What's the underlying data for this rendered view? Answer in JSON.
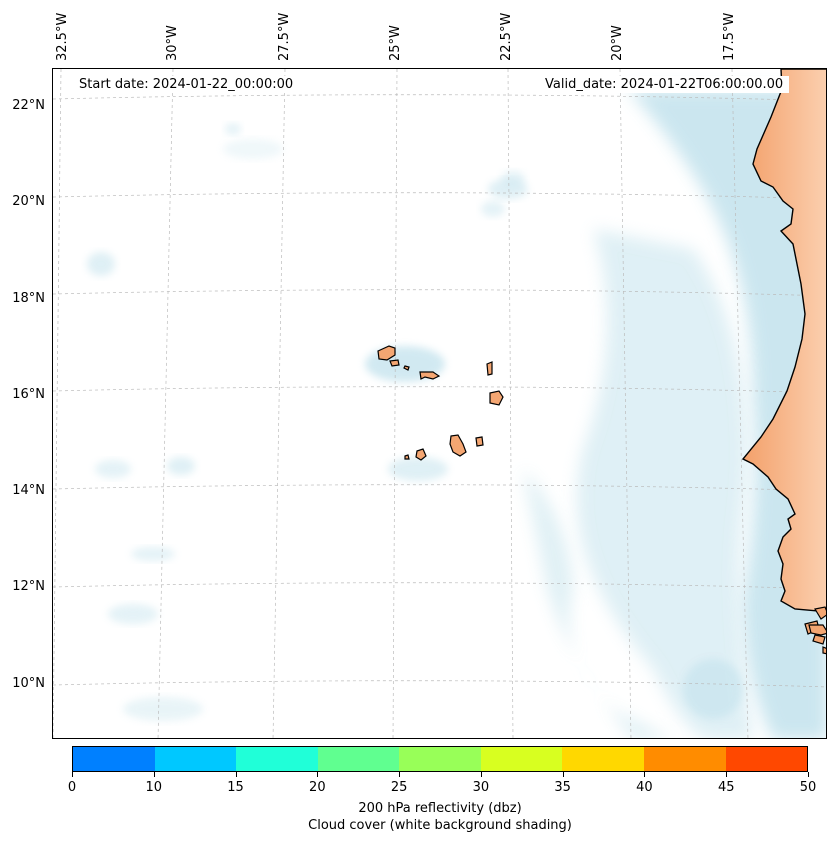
{
  "map": {
    "start_date": "Start date: 2024-01-22_00:00:00",
    "valid_date": "Valid_date: 2024-01-22T06:00:00.00",
    "longitude_labels": [
      "32.5°W",
      "30°W",
      "27.5°W",
      "25°W",
      "22.5°W",
      "20°W",
      "17.5°W"
    ],
    "latitude_labels": [
      "22°N",
      "20°N",
      "18°N",
      "16°N",
      "14°N",
      "12°N",
      "10°N"
    ],
    "land_color": "#f4a672",
    "cloud_color": "#a9d6e5",
    "grid": true
  },
  "colorbar": {
    "bounds": [
      0,
      5,
      10,
      15,
      20,
      25,
      30,
      35,
      40,
      45,
      50
    ],
    "tick_labels": [
      "0",
      "10",
      "15",
      "20",
      "25",
      "30",
      "35",
      "40",
      "45",
      "50"
    ],
    "colors": [
      "#0080ff",
      "#00c8ff",
      "#20ffd8",
      "#60ff90",
      "#98ff58",
      "#d8ff20",
      "#ffd800",
      "#ff8c00",
      "#ff4800"
    ],
    "label_line1": "200 hPa reflectivity (dbz)",
    "label_line2": "Cloud cover (white background shading)"
  }
}
